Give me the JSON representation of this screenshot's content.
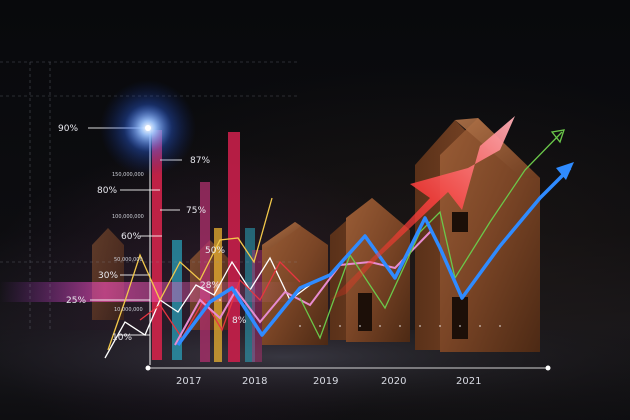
{
  "photo": {
    "subject": "wooden-house-models-with-rising-graph-overlay"
  },
  "percent_labels": [
    "90%",
    "87%",
    "80%",
    "75%",
    "60%",
    "50%",
    "30%",
    "28%",
    "25%",
    "8%",
    "10%"
  ],
  "value_labels": [
    "150,000,000",
    "100,000,000",
    "50,000,000",
    "10,000,000"
  ],
  "year_labels": [
    "2017",
    "2018",
    "2019",
    "2020",
    "2021"
  ],
  "colors": {
    "bar_red": "#d0234a",
    "bar_magenta": "#b0306e",
    "bar_yellow": "#e8b030",
    "bar_cyan": "#2aa7c0",
    "line_blue": "#2f8bff",
    "line_green": "#6bc84a",
    "line_red": "#e83540",
    "line_white": "#ffffff",
    "line_yellow": "#f2c84a",
    "line_pink": "#e78bd0",
    "arrow_red": "#f0404a",
    "wood": "#8a5230"
  },
  "icons": [
    "glowing-star-icon",
    "up-arrow-icon"
  ]
}
